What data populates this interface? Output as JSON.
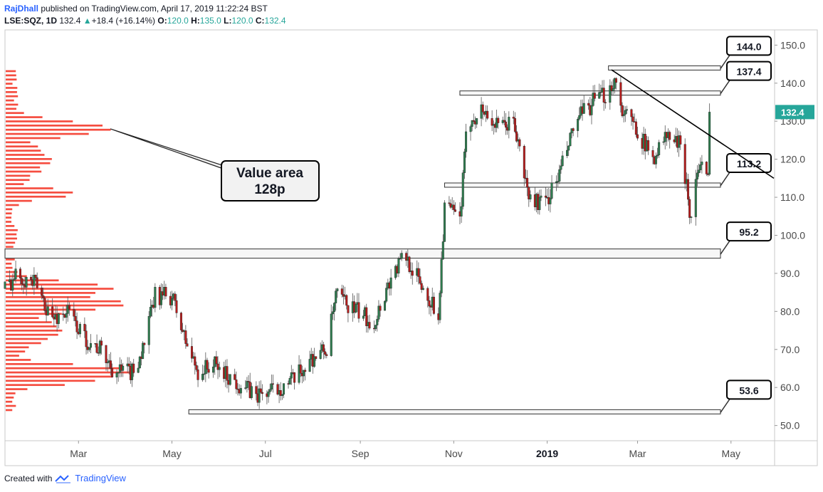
{
  "header": {
    "author": "RajDhall",
    "published": " published on TradingView.com, April 17, 2019 11:22:24 BST",
    "symbol": "LSE:SQZ, 1D",
    "last": "132.4",
    "arrow": "▲",
    "change": "+18.4 (+16.14%)",
    "o_label": "O:",
    "o_value": "120.0",
    "h_label": "H:",
    "h_value": "135.0",
    "l_label": "L:",
    "l_value": "120.0",
    "c_label": "C:",
    "c_value": "132.4"
  },
  "footer": {
    "created_with": "Created with",
    "brand": "TradingView"
  },
  "colors": {
    "up": "#2e7d4f",
    "down": "#b71c1c",
    "profile": "#f44336",
    "trend": "#000000",
    "last_price_badge": "#26a69a"
  },
  "chart_data": {
    "type": "candlestick",
    "price_range": [
      46,
      154
    ],
    "y_ticks": [
      "150.0",
      "140.0",
      "130.0",
      "120.0",
      "110.0",
      "100.0",
      "90.0",
      "80.0",
      "70.0",
      "60.0",
      "50.0"
    ],
    "x_ticks": [
      {
        "label": "Mar",
        "date": "2018-03-01",
        "bold": false
      },
      {
        "label": "May",
        "date": "2018-05-01",
        "bold": false
      },
      {
        "label": "Jul",
        "date": "2018-07-01",
        "bold": false
      },
      {
        "label": "Sep",
        "date": "2018-09-01",
        "bold": false
      },
      {
        "label": "Nov",
        "date": "2018-11-01",
        "bold": false
      },
      {
        "label": "2019",
        "date": "2019-01-01",
        "bold": true
      },
      {
        "label": "Mar",
        "date": "2019-03-01",
        "bold": false
      },
      {
        "label": "May",
        "date": "2019-05-01",
        "bold": false
      }
    ],
    "x_range": [
      "2018-01-12",
      "2019-05-29"
    ],
    "last_price": "132.4",
    "price_path": [
      [
        "2018-01-12",
        86
      ],
      [
        "2018-01-20",
        90
      ],
      [
        "2018-02-01",
        87
      ],
      [
        "2018-02-12",
        78
      ],
      [
        "2018-02-22",
        80
      ],
      [
        "2018-03-05",
        73
      ],
      [
        "2018-03-15",
        70
      ],
      [
        "2018-03-25",
        64
      ],
      [
        "2018-04-05",
        64
      ],
      [
        "2018-04-12",
        70
      ],
      [
        "2018-04-20",
        84
      ],
      [
        "2018-05-01",
        84
      ],
      [
        "2018-05-10",
        72
      ],
      [
        "2018-05-18",
        64
      ],
      [
        "2018-05-28",
        66
      ],
      [
        "2018-06-10",
        62
      ],
      [
        "2018-06-25",
        58
      ],
      [
        "2018-07-05",
        59
      ],
      [
        "2018-07-20",
        62
      ],
      [
        "2018-08-01",
        68
      ],
      [
        "2018-08-10",
        70
      ],
      [
        "2018-08-16",
        84
      ],
      [
        "2018-08-30",
        80
      ],
      [
        "2018-09-10",
        77
      ],
      [
        "2018-09-20",
        88
      ],
      [
        "2018-09-30",
        95
      ],
      [
        "2018-10-12",
        86
      ],
      [
        "2018-10-22",
        79
      ],
      [
        "2018-10-26",
        108
      ],
      [
        "2018-11-05",
        104
      ],
      [
        "2018-11-10",
        130
      ],
      [
        "2018-11-20",
        133
      ],
      [
        "2018-11-30",
        128
      ],
      [
        "2018-12-10",
        130
      ],
      [
        "2018-12-20",
        110
      ],
      [
        "2018-12-30",
        108
      ],
      [
        "2019-01-08",
        115
      ],
      [
        "2019-01-20",
        130
      ],
      [
        "2019-01-31",
        135
      ],
      [
        "2019-02-08",
        137
      ],
      [
        "2019-02-14",
        141
      ],
      [
        "2019-02-20",
        132
      ],
      [
        "2019-03-01",
        128
      ],
      [
        "2019-03-10",
        120
      ],
      [
        "2019-03-20",
        126
      ],
      [
        "2019-03-28",
        124
      ],
      [
        "2019-04-02",
        114
      ],
      [
        "2019-04-06",
        100
      ],
      [
        "2019-04-08",
        116
      ],
      [
        "2019-04-12",
        118
      ],
      [
        "2019-04-16",
        114
      ],
      [
        "2019-04-17",
        132.4
      ]
    ],
    "horizontal_levels": [
      {
        "label": "144.0",
        "price": 144.0,
        "from": "2019-02-10"
      },
      {
        "label": "137.4",
        "price": 137.4,
        "from": "2018-11-05"
      },
      {
        "label": "113.2",
        "price": 113.2,
        "from": "2018-10-26"
      },
      {
        "label": "95.2",
        "price": 95.2,
        "from": "2018-01-12"
      },
      {
        "label": "53.6",
        "price": 53.6,
        "from": "2018-05-12"
      }
    ],
    "trendline": {
      "from": [
        "2019-02-12",
        143.5
      ],
      "to": [
        "2019-05-29",
        115
      ]
    },
    "annotation": {
      "line1": "Value area",
      "line2": "128p",
      "price": 128
    }
  }
}
